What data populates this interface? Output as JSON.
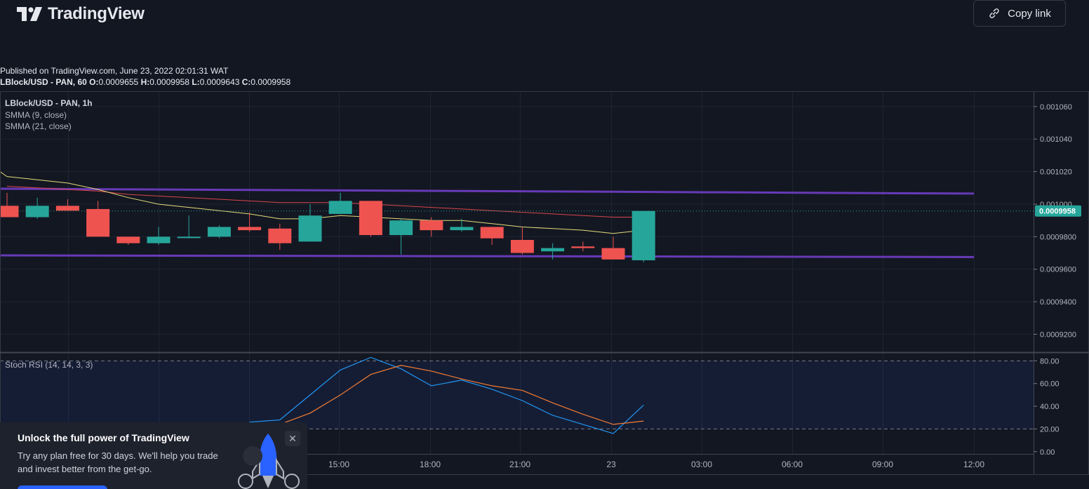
{
  "header": {
    "logo_text": "TradingView",
    "copy_link_label": "Copy link"
  },
  "meta": {
    "published": "Published on TradingView.com, June 23, 2022 02:01:31 WAT",
    "symbol_interval": "LBlock/USD - PAN, 60",
    "ohlc": [
      {
        "k": "O:",
        "v": "0.0009655"
      },
      {
        "k": "H:",
        "v": "0.0009958"
      },
      {
        "k": "L:",
        "v": "0.0009643"
      },
      {
        "k": "C:",
        "v": "0.0009958"
      }
    ]
  },
  "legend": {
    "symbol": "LBlock/USD - PAN, 1h",
    "smma9": "SMMA (9, close)",
    "smma21": "SMMA (21, close)",
    "stoch": "Stoch RSI (14, 14, 3, 3)"
  },
  "promo": {
    "title": "Unlock the full power of TradingView",
    "body": "Try any plan free for 30 days. We'll help you trade and invest better from the get-go."
  },
  "colors": {
    "background": "#131722",
    "up": "#26a69a",
    "down": "#ef5350",
    "smma9": "#e5dc7a",
    "smma21": "#d9454a",
    "channel": "#673ab7",
    "k_line": "#2196f3",
    "d_line": "#f57c30",
    "price_label_bg": "#26a69a"
  },
  "chart_data": [
    {
      "type": "candlestick",
      "title": "LBlock/USD - PAN, 1h",
      "x_ticks": [
        "15:00",
        "18:00",
        "21:00",
        "23",
        "03:00",
        "06:00",
        "09:00",
        "12:00"
      ],
      "y_ticks": [
        "0.001060",
        "0.001040",
        "0.001020",
        "0.001000",
        "0.0009800",
        "0.0009600",
        "0.0009400",
        "0.0009200"
      ],
      "ylim": [
        0.000909,
        0.001069
      ],
      "last_price": "0.0009958",
      "candles": [
        {
          "o": 0.000999,
          "h": 0.001007,
          "l": 0.000992,
          "c": 0.000992
        },
        {
          "o": 0.000992,
          "h": 0.001004,
          "l": 0.000991,
          "c": 0.000999
        },
        {
          "o": 0.000999,
          "h": 0.001003,
          "l": 0.000996,
          "c": 0.000996
        },
        {
          "o": 0.000997,
          "h": 0.001002,
          "l": 0.00098,
          "c": 0.00098
        },
        {
          "o": 0.00098,
          "h": 0.00098,
          "l": 0.000975,
          "c": 0.000976
        },
        {
          "o": 0.000976,
          "h": 0.000986,
          "l": 0.000975,
          "c": 0.00098
        },
        {
          "o": 0.00098,
          "h": 0.000993,
          "l": 0.000979,
          "c": 0.00098
        },
        {
          "o": 0.00098,
          "h": 0.000987,
          "l": 0.000979,
          "c": 0.000986
        },
        {
          "o": 0.000986,
          "h": 0.000995,
          "l": 0.000983,
          "c": 0.000984
        },
        {
          "o": 0.000985,
          "h": 0.000988,
          "l": 0.000972,
          "c": 0.000976
        },
        {
          "o": 0.000977,
          "h": 0.001,
          "l": 0.000977,
          "c": 0.000993
        },
        {
          "o": 0.000994,
          "h": 0.001007,
          "l": 0.000994,
          "c": 0.001002
        },
        {
          "o": 0.001002,
          "h": 0.001002,
          "l": 0.00098,
          "c": 0.000981
        },
        {
          "o": 0.000981,
          "h": 0.000991,
          "l": 0.000969,
          "c": 0.00099
        },
        {
          "o": 0.00099,
          "h": 0.000992,
          "l": 0.00098,
          "c": 0.000984
        },
        {
          "o": 0.000984,
          "h": 0.000991,
          "l": 0.000983,
          "c": 0.000986
        },
        {
          "o": 0.000986,
          "h": 0.000986,
          "l": 0.000975,
          "c": 0.000979
        },
        {
          "o": 0.000978,
          "h": 0.000986,
          "l": 0.000969,
          "c": 0.00097
        },
        {
          "o": 0.000971,
          "h": 0.000976,
          "l": 0.000966,
          "c": 0.000973
        },
        {
          "o": 0.000974,
          "h": 0.000977,
          "l": 0.000971,
          "c": 0.000973
        },
        {
          "o": 0.000973,
          "h": 0.00098,
          "l": 0.000966,
          "c": 0.000966
        },
        {
          "o": 0.0009655,
          "h": 0.0009958,
          "l": 0.0009643,
          "c": 0.0009958
        }
      ],
      "channel": [
        {
          "from": 0.0010095,
          "to": 0.0010065
        },
        {
          "from": 0.0009685,
          "to": 0.0009675
        }
      ],
      "smma9": [
        0.001017,
        0.001015,
        0.001013,
        0.001009,
        0.001004,
        0.001,
        0.000998,
        0.000996,
        0.000994,
        0.000991,
        0.000991,
        0.000993,
        0.000992,
        0.000991,
        0.00099,
        0.00099,
        0.000988,
        0.000986,
        0.000985,
        0.000984,
        0.000982,
        0.000984
      ],
      "smma21": [
        0.001011,
        0.00101,
        0.001009,
        0.001008,
        0.001006,
        0.001005,
        0.001004,
        0.001003,
        0.001002,
        0.001001,
        0.001001,
        0.001001,
        0.001,
        0.000999,
        0.000998,
        0.000997,
        0.000996,
        0.000995,
        0.000994,
        0.000993,
        0.000992,
        0.000992
      ]
    },
    {
      "type": "line",
      "title": "Stoch RSI (14, 14, 3, 3)",
      "y_ticks": [
        "80.00",
        "60.00",
        "40.00",
        "20.00",
        "0.00"
      ],
      "ylim": [
        -2,
        87
      ],
      "bands": [
        20,
        80
      ],
      "series": [
        {
          "name": "K",
          "x_index": [
            8,
            9,
            10,
            11,
            12,
            13,
            14,
            15,
            16,
            17,
            18,
            19,
            20,
            21
          ],
          "values": [
            26,
            28,
            50,
            72,
            83,
            73,
            58,
            63,
            55,
            45,
            32,
            24,
            16,
            41
          ]
        },
        {
          "name": "D",
          "x_index": [
            8,
            9,
            10,
            11,
            12,
            13,
            14,
            15,
            16,
            17,
            18,
            19,
            20,
            21
          ],
          "values": [
            20,
            24,
            34,
            50,
            68,
            76,
            71,
            64,
            58,
            54,
            43,
            33,
            24,
            27
          ]
        }
      ]
    }
  ]
}
